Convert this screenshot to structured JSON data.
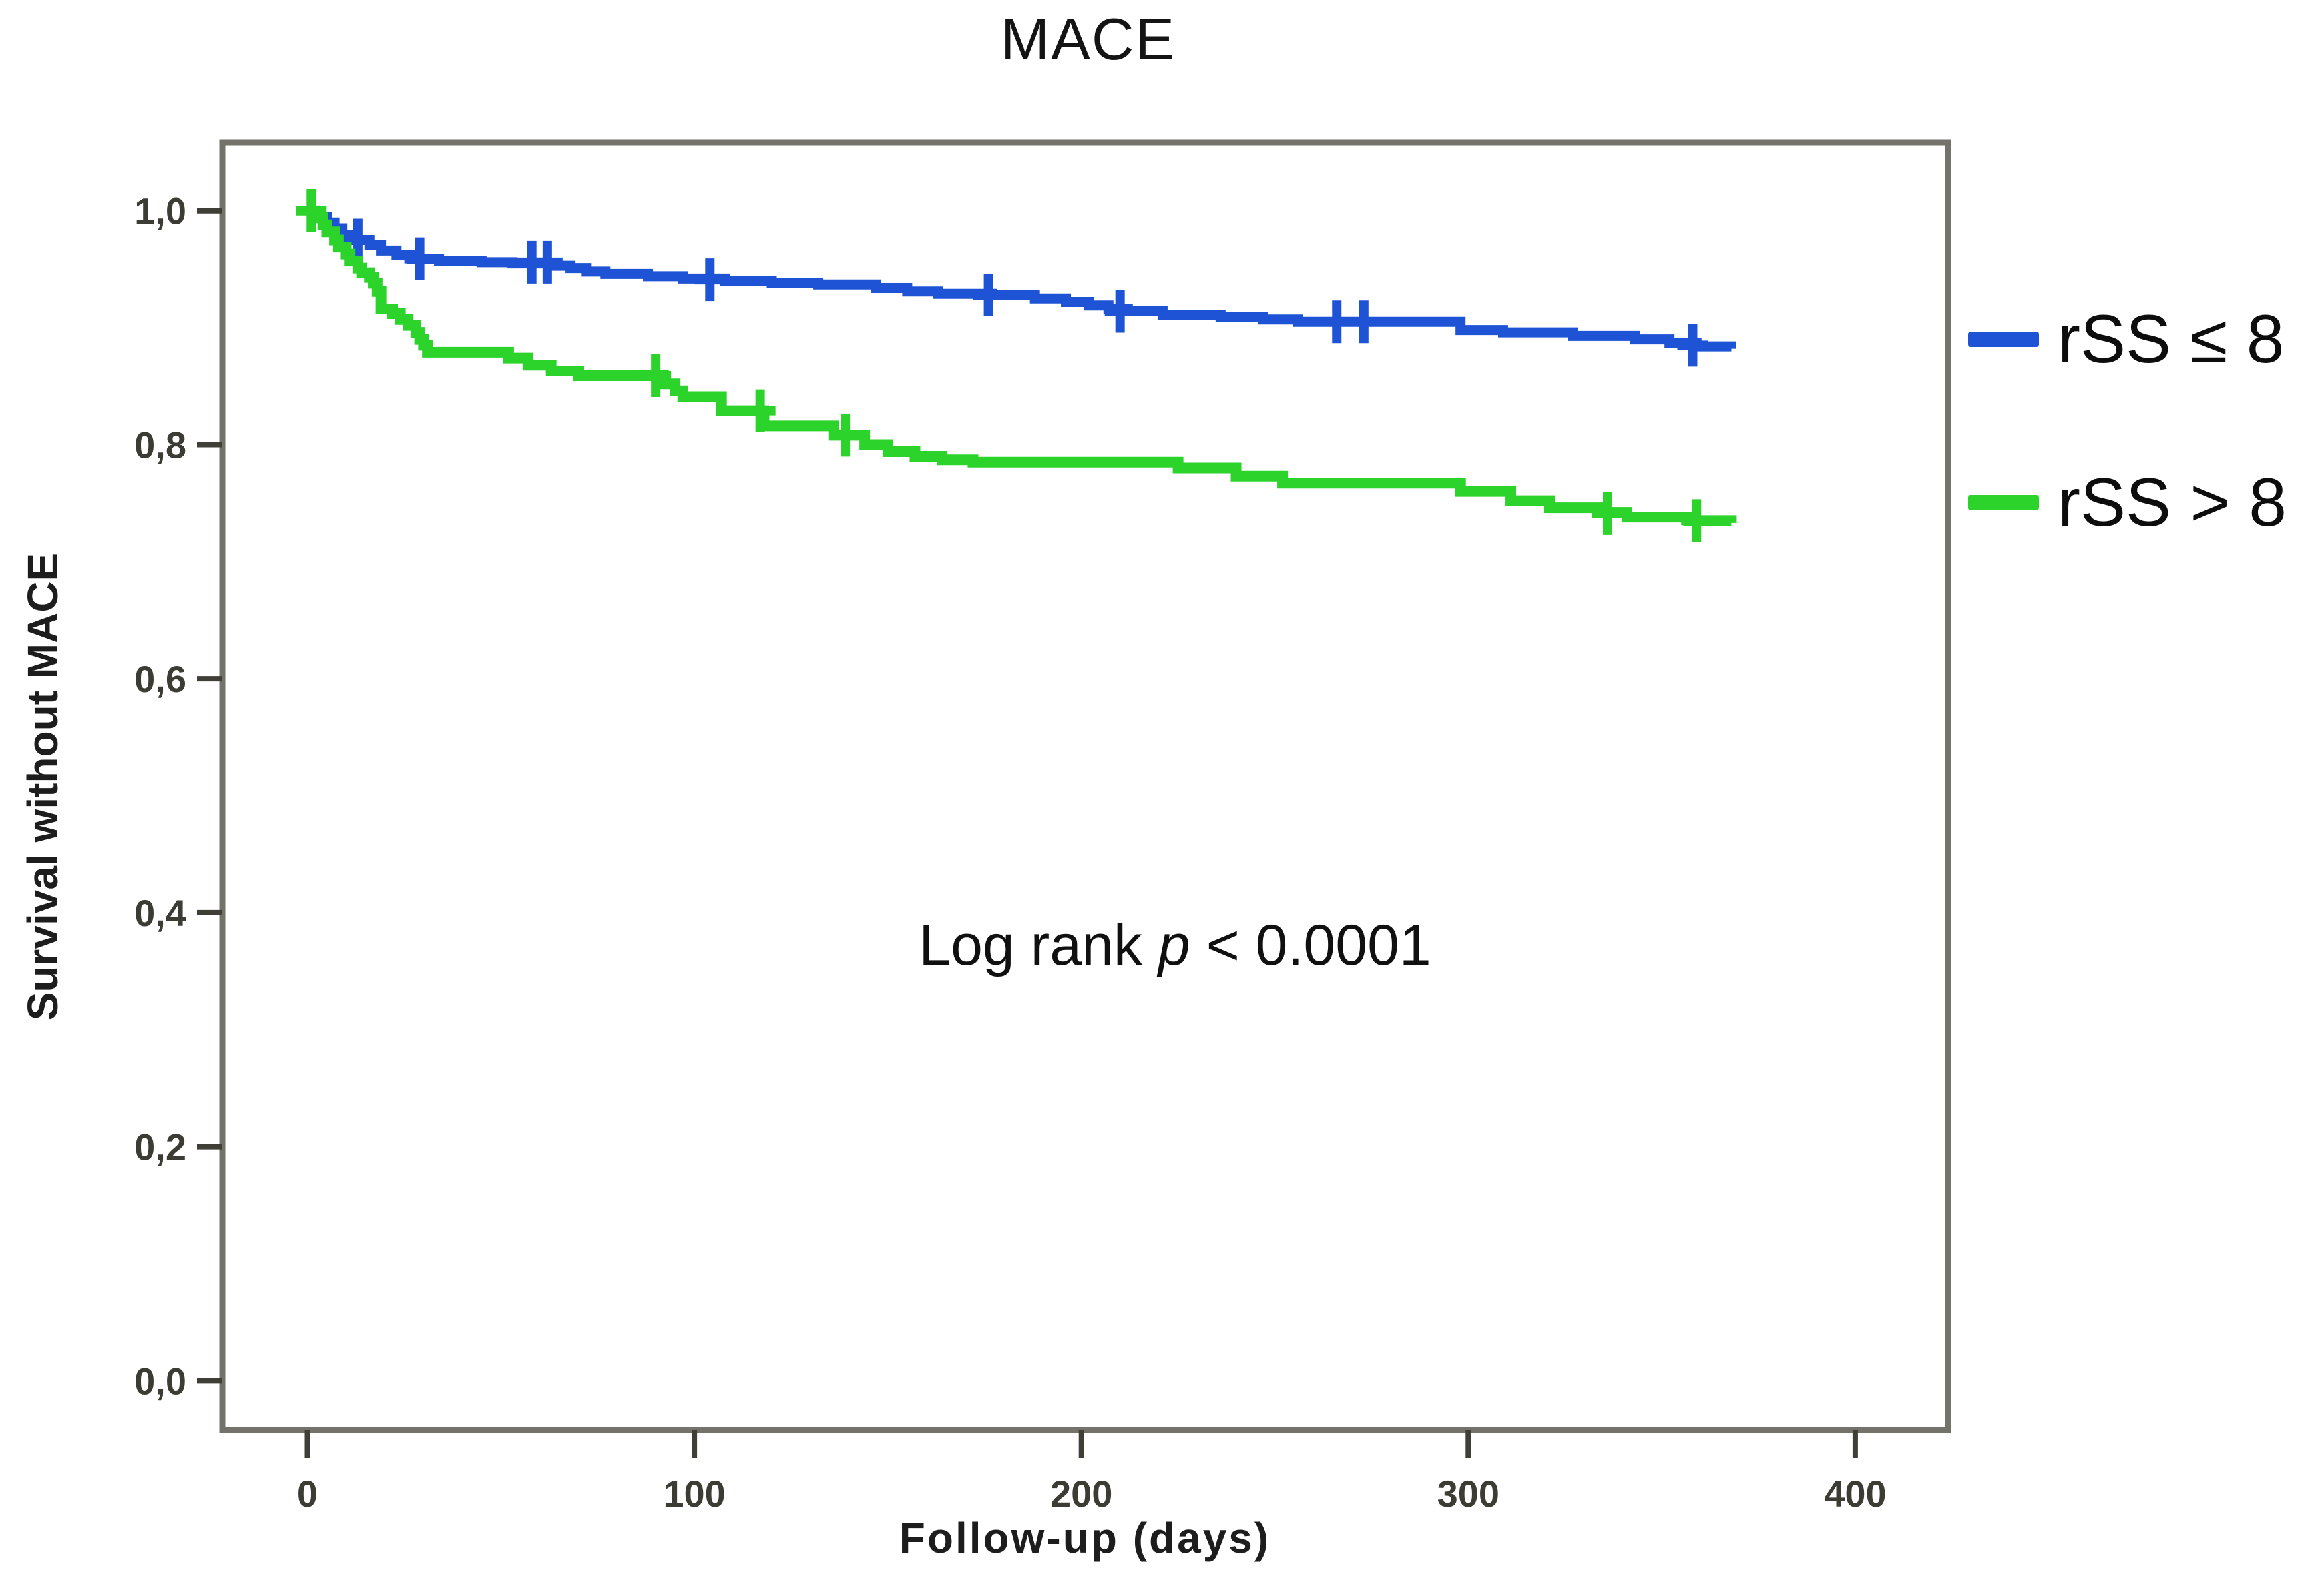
{
  "title": "MACE",
  "axes": {
    "xlabel": "Follow-up (days)",
    "ylabel": "Survival without MACE"
  },
  "annotation": {
    "prefix": "Log rank ",
    "p": "p",
    "suffix": " < 0.0001"
  },
  "colors": {
    "blue_series": "#1e53d6",
    "green_series": "#2bd32b",
    "frame": "#73736b",
    "tick": "#3f3f37",
    "tick_label": "#3c3c35"
  },
  "chart_data": {
    "type": "line",
    "subtype": "kaplan-meier-step",
    "title": "MACE",
    "xlabel": "Follow-up (days)",
    "ylabel": "Survival without MACE",
    "annotation": "Log rank p < 0.0001",
    "grid": false,
    "legend_position": "right-outside",
    "xlim": [
      -22,
      424
    ],
    "ylim": [
      -0.042,
      1.058
    ],
    "x_tick_values": [
      0,
      100,
      200,
      300,
      400
    ],
    "x_tick_labels": [
      "0",
      "100",
      "200",
      "300",
      "400"
    ],
    "y_tick_values": [
      1.0,
      0.8,
      0.6,
      0.4,
      0.2,
      0.0
    ],
    "y_tick_labels": [
      "1,0",
      "0,8",
      "0,6",
      "0,4",
      "0,2",
      "0,0"
    ],
    "series": [
      {
        "name": "rSS ≤ 8",
        "color": "#1e53d6",
        "steps": [
          [
            0,
            1.0
          ],
          [
            3,
            0.995
          ],
          [
            5,
            0.99
          ],
          [
            7,
            0.985
          ],
          [
            9,
            0.979
          ],
          [
            12,
            0.975
          ],
          [
            16,
            0.971
          ],
          [
            19,
            0.966
          ],
          [
            23,
            0.962
          ],
          [
            27,
            0.959
          ],
          [
            34,
            0.957
          ],
          [
            45,
            0.956
          ],
          [
            53,
            0.955
          ],
          [
            64,
            0.953
          ],
          [
            68,
            0.951
          ],
          [
            72,
            0.948
          ],
          [
            77,
            0.946
          ],
          [
            88,
            0.944
          ],
          [
            97,
            0.942
          ],
          [
            108,
            0.94
          ],
          [
            120,
            0.938
          ],
          [
            132,
            0.937
          ],
          [
            147,
            0.934
          ],
          [
            155,
            0.931
          ],
          [
            163,
            0.929
          ],
          [
            177,
            0.928
          ],
          [
            188,
            0.925
          ],
          [
            196,
            0.922
          ],
          [
            202,
            0.919
          ],
          [
            207,
            0.916
          ],
          [
            212,
            0.914
          ],
          [
            221,
            0.911
          ],
          [
            236,
            0.909
          ],
          [
            247,
            0.907
          ],
          [
            256,
            0.905
          ],
          [
            298,
            0.898
          ],
          [
            309,
            0.896
          ],
          [
            327,
            0.893
          ],
          [
            343,
            0.89
          ],
          [
            352,
            0.887
          ],
          [
            359,
            0.884
          ],
          [
            368,
            0.882
          ]
        ],
        "censors": [
          [
            13,
            0.975
          ],
          [
            29,
            0.959
          ],
          [
            58,
            0.956
          ],
          [
            62,
            0.956
          ],
          [
            104,
            0.941
          ],
          [
            176,
            0.928
          ],
          [
            210,
            0.914
          ],
          [
            266,
            0.905
          ],
          [
            273,
            0.905
          ],
          [
            358,
            0.885
          ]
        ]
      },
      {
        "name": "rSS > 8",
        "color": "#2bd32b",
        "steps": [
          [
            0,
            1.0
          ],
          [
            2,
            0.994
          ],
          [
            4,
            0.988
          ],
          [
            5,
            0.982
          ],
          [
            7,
            0.975
          ],
          [
            8,
            0.969
          ],
          [
            10,
            0.963
          ],
          [
            11,
            0.957
          ],
          [
            13,
            0.951
          ],
          [
            14,
            0.947
          ],
          [
            16,
            0.943
          ],
          [
            17,
            0.938
          ],
          [
            18,
            0.931
          ],
          [
            19,
            0.916
          ],
          [
            22,
            0.912
          ],
          [
            24,
            0.907
          ],
          [
            26,
            0.902
          ],
          [
            28,
            0.896
          ],
          [
            29,
            0.89
          ],
          [
            30,
            0.885
          ],
          [
            31,
            0.879
          ],
          [
            52,
            0.874
          ],
          [
            57,
            0.868
          ],
          [
            63,
            0.863
          ],
          [
            70,
            0.859
          ],
          [
            92,
            0.852
          ],
          [
            95,
            0.846
          ],
          [
            97,
            0.841
          ],
          [
            107,
            0.829
          ],
          [
            118,
            0.816
          ],
          [
            136,
            0.808
          ],
          [
            144,
            0.8
          ],
          [
            150,
            0.794
          ],
          [
            157,
            0.79
          ],
          [
            164,
            0.787
          ],
          [
            172,
            0.785
          ],
          [
            225,
            0.78
          ],
          [
            240,
            0.773
          ],
          [
            252,
            0.767
          ],
          [
            298,
            0.76
          ],
          [
            311,
            0.752
          ],
          [
            321,
            0.746
          ],
          [
            334,
            0.742
          ],
          [
            341,
            0.738
          ],
          [
            357,
            0.735
          ],
          [
            368,
            0.733
          ]
        ],
        "censors": [
          [
            1,
            1.0
          ],
          [
            90,
            0.859
          ],
          [
            117,
            0.829
          ],
          [
            139,
            0.808
          ],
          [
            336,
            0.741
          ],
          [
            359,
            0.735
          ]
        ]
      }
    ]
  },
  "legend": {
    "entries": [
      {
        "label": "rSS ≤ 8",
        "color": "#1e53d6"
      },
      {
        "label": "rSS > 8",
        "color": "#2bd32b"
      }
    ]
  }
}
